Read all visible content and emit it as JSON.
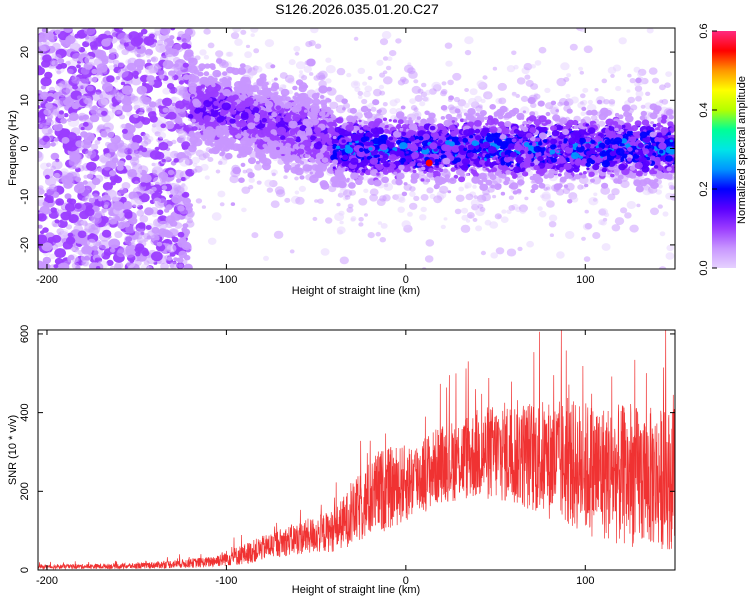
{
  "title": "S126.2026.035.01.20.C27",
  "colors": {
    "snr_line": "#f03232",
    "colormap": [
      "#e6d2ff",
      "#c896ff",
      "#9b3cff",
      "#5a00ff",
      "#0000ff",
      "#0096ff",
      "#00e6e6",
      "#00ff96",
      "#b4ff00",
      "#ffff00",
      "#ff9600",
      "#ff0000",
      "#ff2a80"
    ]
  },
  "chart_data": [
    {
      "type": "heatmap",
      "name": "spectrogram",
      "title": "S126.2026.035.01.20.C27",
      "xlabel": "Height of straight line (km)",
      "ylabel": "Frequency (Hz)",
      "xlim": [
        -205,
        150
      ],
      "ylim": [
        -25,
        25
      ],
      "xticks": [
        -200,
        -100,
        0,
        100
      ],
      "yticks": [
        -20,
        -10,
        0,
        10,
        20
      ],
      "colorbar": {
        "label": "Normalized spectral amplitude",
        "range": [
          0.0,
          0.6
        ],
        "ticks": [
          "0.0",
          "0.2",
          "0.4",
          "0.6"
        ]
      },
      "description_bands": [
        {
          "x_range": [
            -205,
            -120
          ],
          "freq_spread": 25,
          "amplitude": 0.05
        },
        {
          "x_range": [
            -120,
            -40
          ],
          "center_freq_start": 9,
          "center_freq_end": 2,
          "width": 7,
          "amplitude": 0.12
        },
        {
          "x_range": [
            -40,
            150
          ],
          "center_freq": 0,
          "width": 6,
          "amplitude": 0.18
        }
      ],
      "peak": {
        "x": 13,
        "y": -3,
        "value": 0.55
      }
    },
    {
      "type": "line",
      "name": "snr",
      "xlabel": "Height of straight line (km)",
      "ylabel": "SNR (10 * v/v)",
      "xlim": [
        -205,
        150
      ],
      "ylim": [
        0,
        610
      ],
      "xticks": [
        -200,
        -100,
        0,
        100
      ],
      "yticks": [
        0,
        200,
        400,
        600
      ],
      "envelope": {
        "x": [
          -205,
          -150,
          -110,
          -90,
          -70,
          -40,
          -25,
          -15,
          0,
          20,
          40,
          60,
          80,
          100,
          120,
          150
        ],
        "mean": [
          8,
          10,
          20,
          40,
          70,
          100,
          160,
          200,
          220,
          270,
          295,
          300,
          280,
          260,
          240,
          230
        ],
        "spread": [
          6,
          8,
          15,
          30,
          40,
          60,
          100,
          120,
          110,
          110,
          130,
          150,
          170,
          190,
          200,
          200
        ]
      }
    }
  ]
}
